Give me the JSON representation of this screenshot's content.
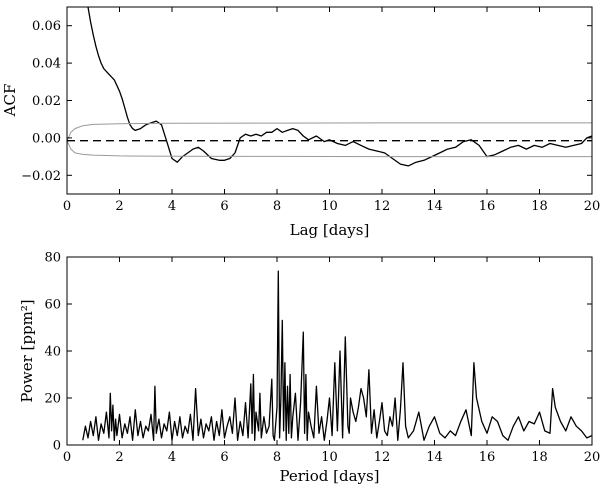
{
  "chart_data": [
    {
      "type": "line",
      "xlabel": "Lag [days]",
      "ylabel": "ACF",
      "xlim": [
        0,
        20
      ],
      "ylim": [
        -0.03,
        0.07
      ],
      "xticks": [
        "0",
        "2",
        "4",
        "6",
        "8",
        "10",
        "12",
        "14",
        "16",
        "18",
        "20"
      ],
      "yticks": [
        "−0.02",
        "0.00",
        "0.02",
        "0.04",
        "0.06"
      ],
      "grid": false,
      "series": [
        {
          "role": "acf",
          "color": "#000000",
          "x": [
            0.8,
            0.9,
            1.0,
            1.1,
            1.2,
            1.3,
            1.4,
            1.6,
            1.8,
            2.0,
            2.1,
            2.2,
            2.3,
            2.4,
            2.5,
            2.6,
            2.8,
            3.0,
            3.2,
            3.4,
            3.6,
            3.8,
            4.0,
            4.2,
            4.4,
            4.6,
            4.8,
            5.0,
            5.2,
            5.5,
            5.8,
            6.0,
            6.2,
            6.4,
            6.6,
            6.8,
            7.0,
            7.2,
            7.4,
            7.6,
            7.8,
            8.0,
            8.2,
            8.4,
            8.6,
            8.8,
            9.0,
            9.2,
            9.5,
            9.8,
            10.0,
            10.3,
            10.6,
            10.9,
            11.2,
            11.5,
            11.8,
            12.1,
            12.4,
            12.7,
            13.0,
            13.3,
            13.6,
            13.9,
            14.2,
            14.5,
            14.8,
            15.1,
            15.4,
            15.7,
            16.0,
            16.3,
            16.6,
            16.9,
            17.2,
            17.5,
            17.8,
            18.1,
            18.4,
            18.7,
            19.0,
            19.3,
            19.6,
            19.8,
            20.0
          ],
          "y": [
            0.07,
            0.062,
            0.055,
            0.049,
            0.044,
            0.04,
            0.037,
            0.034,
            0.031,
            0.025,
            0.021,
            0.016,
            0.011,
            0.007,
            0.005,
            0.004,
            0.005,
            0.007,
            0.008,
            0.009,
            0.007,
            -0.002,
            -0.011,
            -0.013,
            -0.01,
            -0.008,
            -0.006,
            -0.005,
            -0.007,
            -0.011,
            -0.012,
            -0.012,
            -0.011,
            -0.008,
            0.0,
            0.002,
            0.001,
            0.002,
            0.001,
            0.003,
            0.003,
            0.005,
            0.003,
            0.004,
            0.005,
            0.004,
            0.001,
            -0.001,
            0.001,
            -0.002,
            -0.001,
            -0.003,
            -0.004,
            -0.002,
            -0.004,
            -0.006,
            -0.007,
            -0.008,
            -0.011,
            -0.014,
            -0.015,
            -0.013,
            -0.012,
            -0.01,
            -0.008,
            -0.006,
            -0.005,
            -0.002,
            -0.001,
            -0.004,
            -0.01,
            -0.009,
            -0.007,
            -0.005,
            -0.004,
            -0.006,
            -0.004,
            -0.005,
            -0.003,
            -0.004,
            -0.005,
            -0.004,
            -0.003,
            0.0,
            0.001
          ]
        },
        {
          "role": "upper-envelope",
          "color": "#999999",
          "x": [
            0.0,
            0.15,
            0.3,
            0.6,
            1.0,
            2.0,
            4.0,
            8.0,
            12.0,
            16.0,
            20.0
          ],
          "y": [
            -0.0015,
            0.003,
            0.005,
            0.0065,
            0.0072,
            0.0076,
            0.0078,
            0.0079,
            0.008,
            0.008,
            0.008
          ]
        },
        {
          "role": "lower-envelope",
          "color": "#999999",
          "x": [
            0.0,
            0.15,
            0.3,
            0.6,
            1.0,
            2.0,
            4.0,
            8.0,
            12.0,
            16.0,
            20.0
          ],
          "y": [
            -0.0015,
            -0.006,
            -0.008,
            -0.0088,
            -0.0092,
            -0.0096,
            -0.0098,
            -0.0099,
            -0.01,
            -0.01,
            -0.01
          ]
        },
        {
          "role": "zero-line-dashed",
          "color": "#000000",
          "x": [
            0,
            20
          ],
          "y": [
            -0.0015,
            -0.0015
          ]
        }
      ]
    },
    {
      "type": "line",
      "xlabel": "Period [days]",
      "ylabel": "Power [ppm²]",
      "xlim": [
        0,
        20
      ],
      "ylim": [
        0,
        80
      ],
      "xticks": [
        "0",
        "2",
        "4",
        "6",
        "8",
        "10",
        "12",
        "14",
        "16",
        "18",
        "20"
      ],
      "yticks": [
        "0",
        "20",
        "40",
        "60",
        "80"
      ],
      "grid": false,
      "series": [
        {
          "role": "periodogram",
          "color": "#000000",
          "x": [
            0.6,
            0.7,
            0.8,
            0.9,
            1.0,
            1.1,
            1.2,
            1.3,
            1.4,
            1.5,
            1.6,
            1.65,
            1.7,
            1.75,
            1.8,
            1.85,
            1.9,
            2.0,
            2.1,
            2.2,
            2.3,
            2.4,
            2.5,
            2.6,
            2.7,
            2.8,
            2.9,
            3.0,
            3.1,
            3.2,
            3.3,
            3.35,
            3.4,
            3.5,
            3.6,
            3.7,
            3.8,
            3.9,
            4.0,
            4.1,
            4.2,
            4.3,
            4.4,
            4.5,
            4.6,
            4.7,
            4.8,
            4.9,
            5.0,
            5.1,
            5.2,
            5.3,
            5.4,
            5.5,
            5.6,
            5.7,
            5.8,
            5.9,
            6.0,
            6.1,
            6.2,
            6.3,
            6.4,
            6.5,
            6.6,
            6.7,
            6.8,
            6.9,
            7.0,
            7.05,
            7.1,
            7.15,
            7.2,
            7.3,
            7.35,
            7.4,
            7.5,
            7.6,
            7.7,
            7.8,
            7.85,
            7.9,
            8.0,
            8.05,
            8.1,
            8.15,
            8.2,
            8.25,
            8.3,
            8.35,
            8.4,
            8.45,
            8.5,
            8.55,
            8.6,
            8.7,
            8.8,
            8.9,
            9.0,
            9.05,
            9.1,
            9.15,
            9.2,
            9.3,
            9.4,
            9.5,
            9.6,
            9.7,
            9.8,
            9.9,
            10.0,
            10.1,
            10.2,
            10.3,
            10.4,
            10.5,
            10.6,
            10.7,
            10.75,
            10.8,
            10.9,
            11.0,
            11.1,
            11.2,
            11.3,
            11.4,
            11.5,
            11.6,
            11.7,
            11.8,
            11.9,
            12.0,
            12.1,
            12.2,
            12.3,
            12.4,
            12.5,
            12.6,
            12.7,
            12.8,
            12.9,
            13.0,
            13.2,
            13.4,
            13.6,
            13.8,
            14.0,
            14.2,
            14.4,
            14.6,
            14.8,
            15.0,
            15.2,
            15.4,
            15.5,
            15.6,
            15.8,
            16.0,
            16.2,
            16.4,
            16.6,
            16.8,
            17.0,
            17.2,
            17.4,
            17.6,
            17.8,
            18.0,
            18.2,
            18.4,
            18.5,
            18.6,
            18.8,
            19.0,
            19.2,
            19.4,
            19.6,
            19.8,
            20.0
          ],
          "y": [
            2,
            8,
            3,
            10,
            4,
            12,
            2,
            9,
            5,
            14,
            3,
            22,
            6,
            17,
            2,
            11,
            4,
            13,
            3,
            9,
            5,
            12,
            2,
            15,
            4,
            10,
            3,
            8,
            6,
            13,
            2,
            25,
            5,
            11,
            3,
            9,
            6,
            14,
            2,
            10,
            4,
            12,
            3,
            8,
            5,
            13,
            2,
            24,
            4,
            11,
            3,
            9,
            6,
            12,
            2,
            10,
            4,
            15,
            3,
            8,
            12,
            5,
            20,
            2,
            10,
            4,
            18,
            3,
            26,
            5,
            30,
            2,
            14,
            6,
            22,
            3,
            12,
            5,
            8,
            28,
            4,
            2,
            16,
            74,
            3,
            20,
            53,
            6,
            35,
            2,
            25,
            5,
            30,
            3,
            12,
            22,
            2,
            18,
            48,
            5,
            30,
            2,
            14,
            8,
            3,
            25,
            5,
            12,
            2,
            10,
            20,
            4,
            35,
            6,
            40,
            3,
            46,
            8,
            5,
            20,
            14,
            10,
            16,
            24,
            20,
            12,
            32,
            5,
            15,
            3,
            10,
            18,
            6,
            4,
            12,
            8,
            20,
            2,
            15,
            35,
            8,
            3,
            6,
            14,
            2,
            8,
            12,
            5,
            3,
            6,
            4,
            10,
            15,
            4,
            35,
            20,
            10,
            5,
            12,
            10,
            4,
            2,
            8,
            12,
            6,
            10,
            9,
            14,
            6,
            5,
            24,
            16,
            10,
            6,
            12,
            8,
            6,
            3,
            4
          ]
        }
      ]
    }
  ]
}
